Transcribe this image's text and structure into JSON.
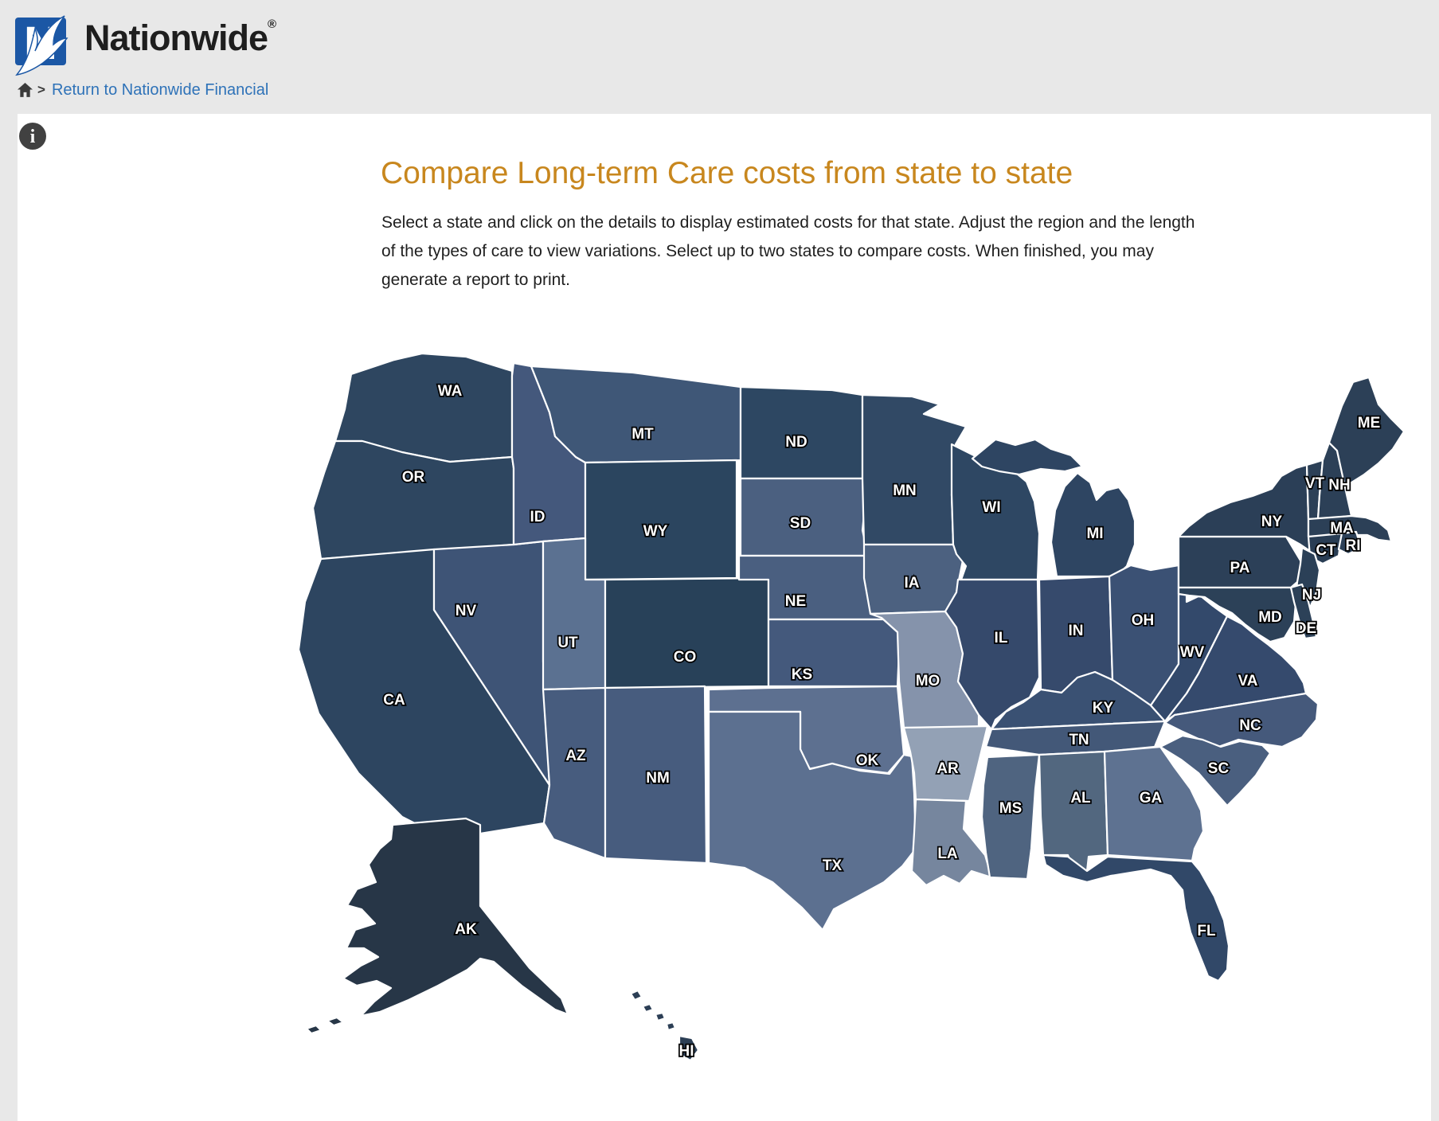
{
  "page": {
    "background": "#e8e8e8",
    "panel_background": "#ffffff"
  },
  "header": {
    "logo": {
      "brand": "Nationwide",
      "registered_mark": "®",
      "mark_color": "#1b57a5"
    },
    "breadcrumb": {
      "separator": ">",
      "link_label": "Return to Nationwide Financial",
      "link_color": "#2e72b8"
    }
  },
  "toolbar": {
    "info_icon_glyph": "i"
  },
  "content": {
    "title": "Compare Long-term Care costs from state to state",
    "title_color": "#c8871e",
    "intro_lines": [
      "Select a state and click on the details to display estimated costs for that state. Adjust the region and the length",
      "of the types of care to view variations. Select up to two states to compare costs. When finished, you may",
      "generate a report to print."
    ]
  },
  "map": {
    "border_color": "#ffffff",
    "label_color": "#ffffff",
    "label_outline_color": "#000000",
    "states": [
      {
        "id": "WA",
        "label": "WA",
        "color": "#2e4660"
      },
      {
        "id": "OR",
        "label": "OR",
        "color": "#2e4660"
      },
      {
        "id": "CA",
        "label": "CA",
        "color": "#2d4560"
      },
      {
        "id": "NV",
        "label": "NV",
        "color": "#3e5476"
      },
      {
        "id": "ID",
        "label": "ID",
        "color": "#44587c"
      },
      {
        "id": "MT",
        "label": "MT",
        "color": "#3f5777"
      },
      {
        "id": "WY",
        "label": "WY",
        "color": "#2b455f"
      },
      {
        "id": "UT",
        "label": "UT",
        "color": "#5b7191"
      },
      {
        "id": "CO",
        "label": "CO",
        "color": "#284159"
      },
      {
        "id": "AZ",
        "label": "AZ",
        "color": "#475c7e"
      },
      {
        "id": "NM",
        "label": "NM",
        "color": "#475c7e"
      },
      {
        "id": "ND",
        "label": "ND",
        "color": "#2d4762"
      },
      {
        "id": "SD",
        "label": "SD",
        "color": "#4b6080"
      },
      {
        "id": "NE",
        "label": "NE",
        "color": "#4a5f80"
      },
      {
        "id": "KS",
        "label": "KS",
        "color": "#44597c"
      },
      {
        "id": "OK",
        "label": "OK",
        "color": "#5d7090"
      },
      {
        "id": "TX",
        "label": "TX",
        "color": "#5c7090"
      },
      {
        "id": "MN",
        "label": "MN",
        "color": "#314965"
      },
      {
        "id": "IA",
        "label": "IA",
        "color": "#4c6180"
      },
      {
        "id": "MO",
        "label": "MO",
        "color": "#8593ab"
      },
      {
        "id": "AR",
        "label": "AR",
        "color": "#93a1b5"
      },
      {
        "id": "LA",
        "label": "LA",
        "color": "#76869e"
      },
      {
        "id": "WI",
        "label": "WI",
        "color": "#2e4763"
      },
      {
        "id": "IL",
        "label": "IL",
        "color": "#35496b"
      },
      {
        "id": "MS",
        "label": "MS",
        "color": "#4f6480"
      },
      {
        "id": "MI",
        "label": "MI",
        "color": "#2e4562"
      },
      {
        "id": "IN",
        "label": "IN",
        "color": "#364a6c"
      },
      {
        "id": "OH",
        "label": "OH",
        "color": "#3b5174"
      },
      {
        "id": "KY",
        "label": "KY",
        "color": "#3a5173"
      },
      {
        "id": "TN",
        "label": "TN",
        "color": "#435878"
      },
      {
        "id": "AL",
        "label": "AL",
        "color": "#52677f"
      },
      {
        "id": "GA",
        "label": "GA",
        "color": "#5e7291"
      },
      {
        "id": "FL",
        "label": "FL",
        "color": "#314868"
      },
      {
        "id": "WV",
        "label": "WV",
        "color": "#33496b"
      },
      {
        "id": "VA",
        "label": "VA",
        "color": "#354a6d"
      },
      {
        "id": "NC",
        "label": "NC",
        "color": "#45597b"
      },
      {
        "id": "SC",
        "label": "SC",
        "color": "#4a5f7f"
      },
      {
        "id": "PA",
        "label": "PA",
        "color": "#2c4058"
      },
      {
        "id": "NY",
        "label": "NY",
        "color": "#2b3f57"
      },
      {
        "id": "VT",
        "label": "VT",
        "color": "#2c4057"
      },
      {
        "id": "NH",
        "label": "NH",
        "color": "#2c4057"
      },
      {
        "id": "ME",
        "label": "ME",
        "color": "#2c4057"
      },
      {
        "id": "MA",
        "label": "MA",
        "color": "#2c4057"
      },
      {
        "id": "CT",
        "label": "CT",
        "color": "#293d54"
      },
      {
        "id": "RI",
        "label": "RI",
        "color": "#2c4057"
      },
      {
        "id": "NJ",
        "label": "NJ",
        "color": "#2b4057"
      },
      {
        "id": "MD",
        "label": "MD",
        "color": "#2c4158"
      },
      {
        "id": "DE",
        "label": "DE",
        "color": "#2c4158"
      },
      {
        "id": "AK",
        "label": "AK",
        "color": "#273647"
      },
      {
        "id": "HI",
        "label": "HI",
        "color": "#2c3f55"
      }
    ]
  }
}
